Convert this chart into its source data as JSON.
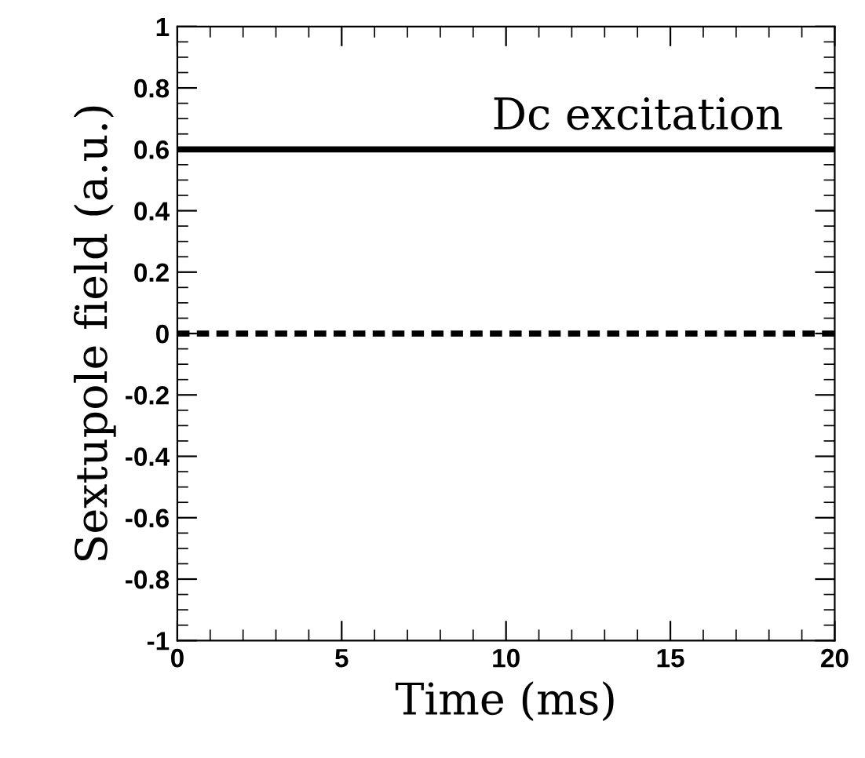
{
  "chart_data": {
    "type": "line",
    "xlabel": "Time (ms)",
    "ylabel": "Sextupole field (a.u.)",
    "x": [
      0,
      20
    ],
    "series": [
      {
        "color": "#000000",
        "values": [
          0.6,
          0.6
        ],
        "line_style": "solid"
      },
      {
        "color": "#000000",
        "values": [
          0,
          0
        ],
        "line_style": "dotted"
      }
    ],
    "annotations": [
      {
        "text": "Dc excitation",
        "x": 14,
        "y": 0.6
      }
    ],
    "xlim": [
      0,
      20
    ],
    "xticks": [
      0,
      5,
      10,
      15,
      20
    ],
    "ylim": [
      -1,
      1
    ],
    "yticks": [
      -1,
      -0.8,
      -0.6,
      -0.4,
      -0.2,
      0,
      0.2,
      0.4,
      0.6,
      0.8,
      1
    ],
    "grid": false,
    "legend": false,
    "marker": "none"
  }
}
